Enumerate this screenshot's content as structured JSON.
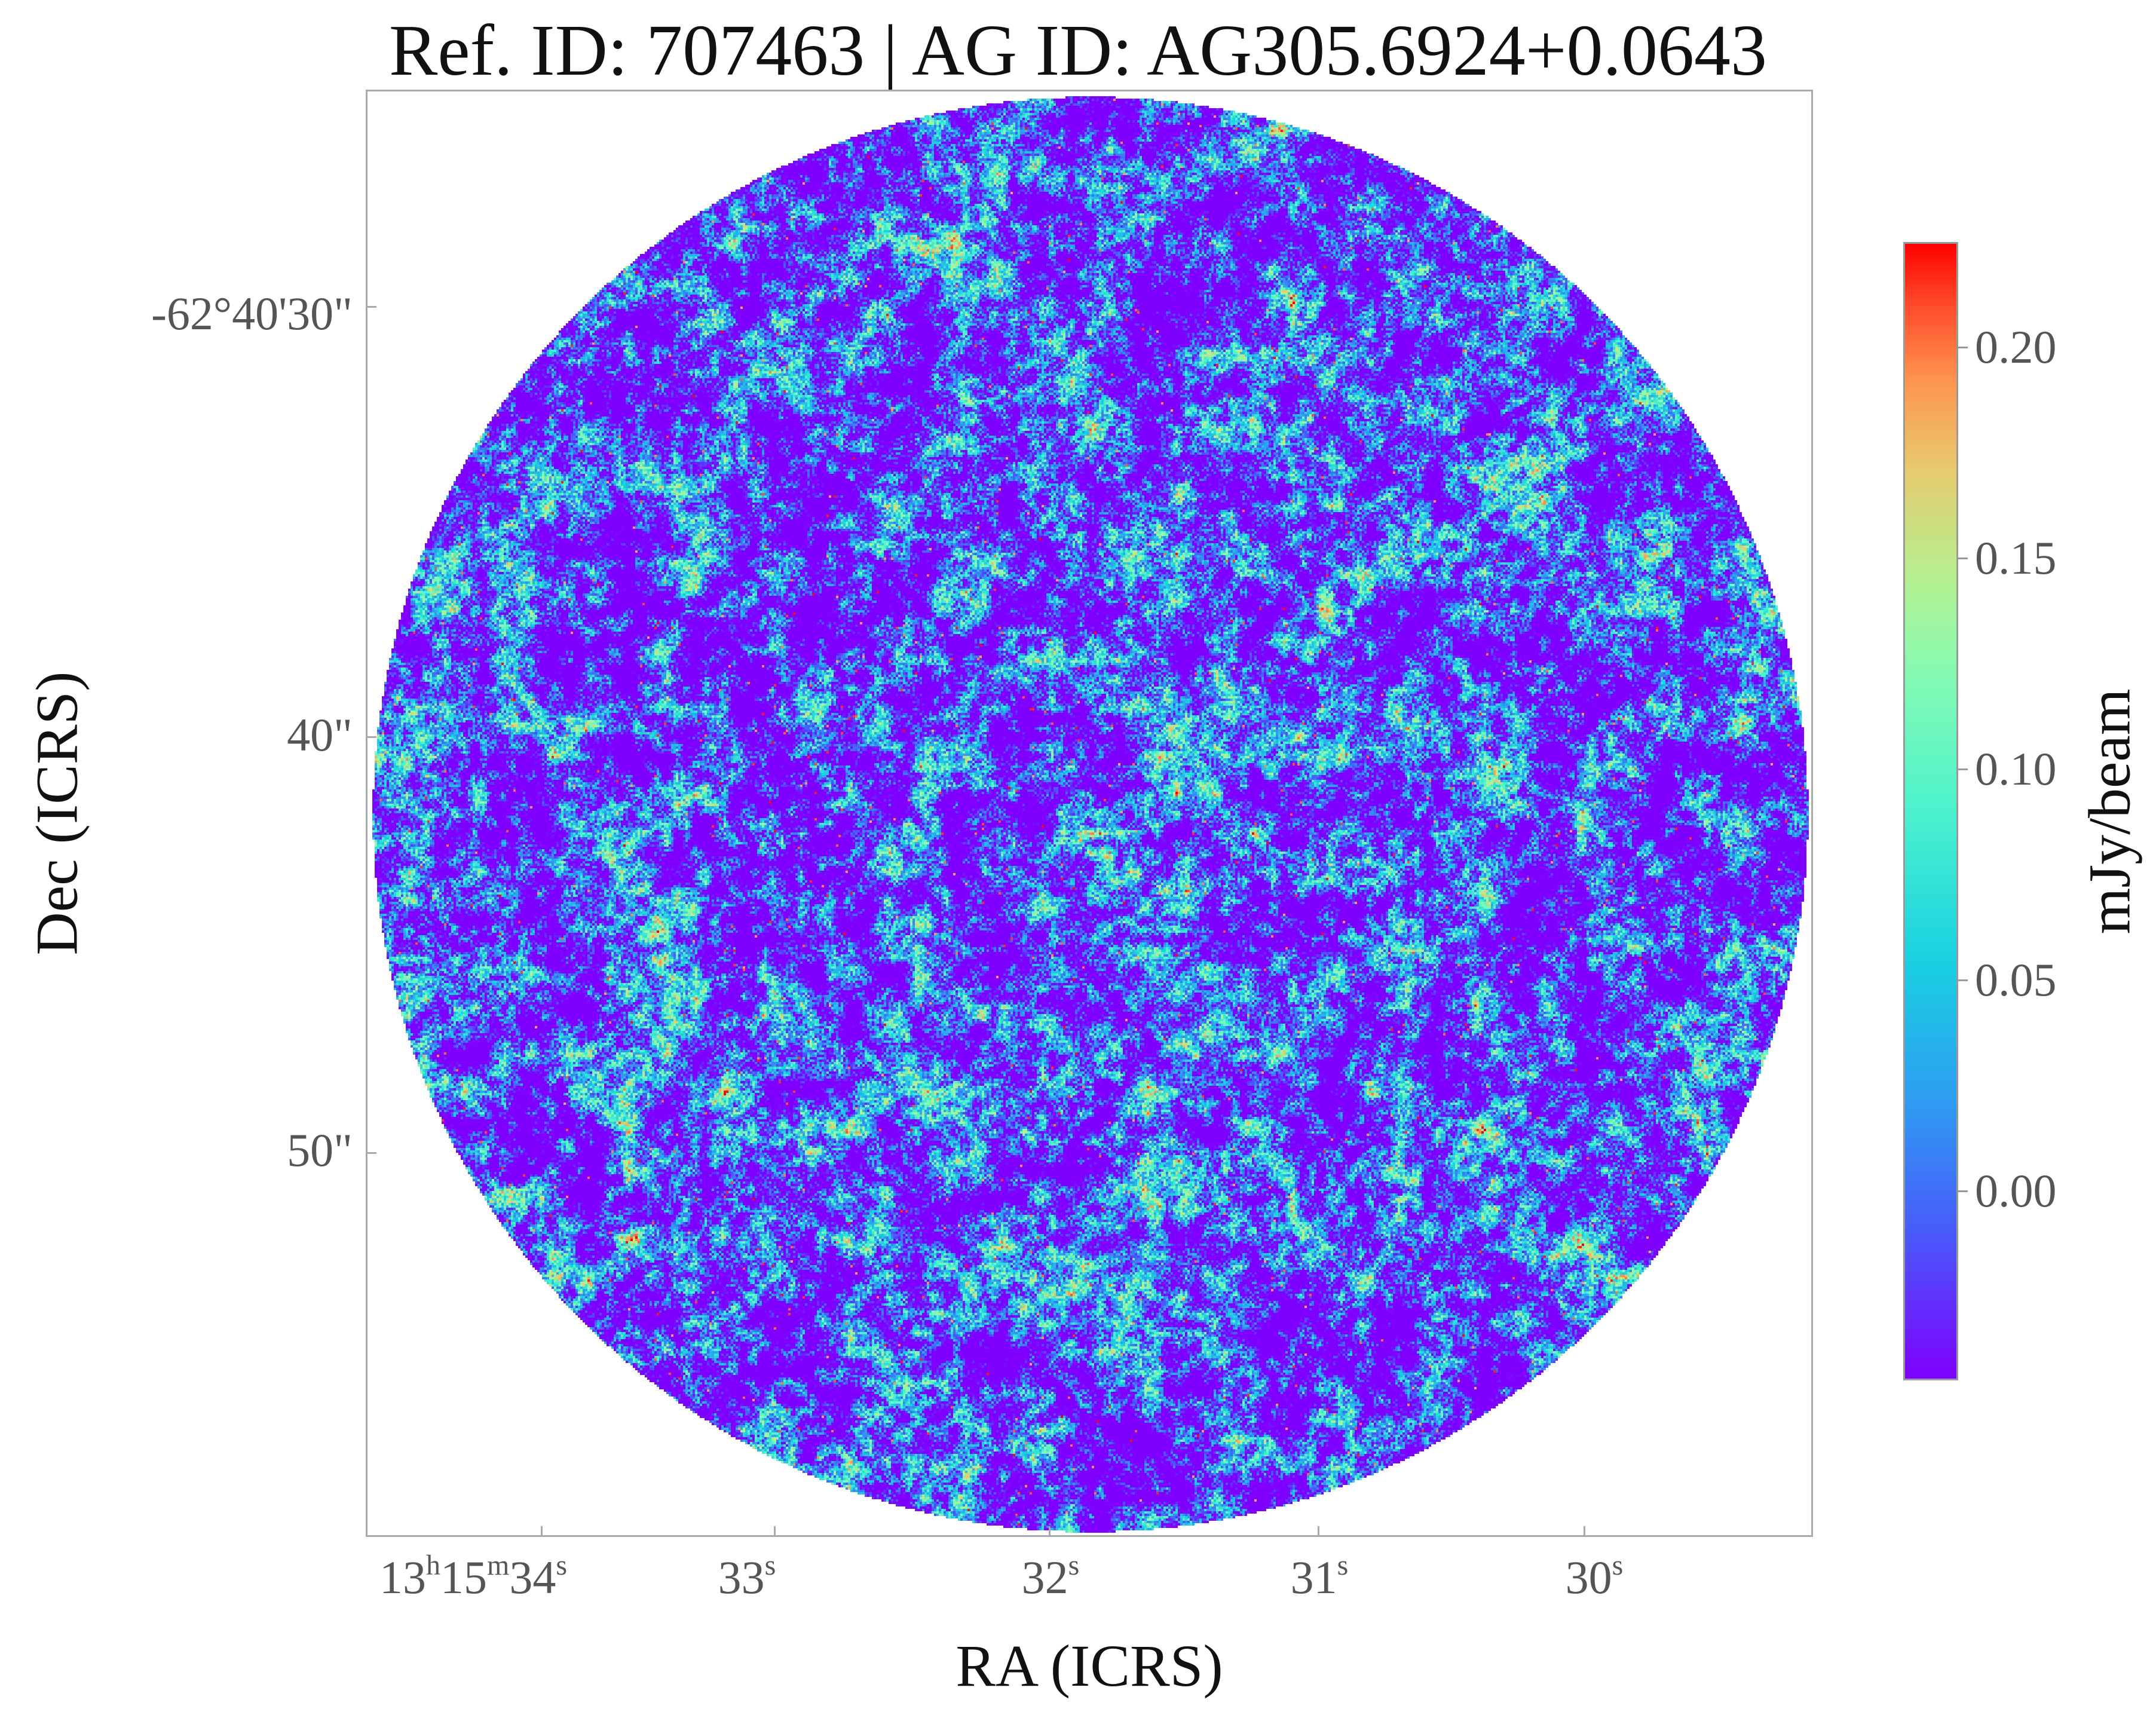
{
  "chart_data": {
    "type": "heatmap",
    "title": "Ref. ID: 707463 | AG ID: AG305.6924+0.0643",
    "xlabel": "RA (ICRS)",
    "ylabel": "Dec (ICRS)",
    "x_ticks": [
      {
        "h": "13",
        "hu": "h",
        "m": "15",
        "mu": "m",
        "s": "34",
        "su": "s"
      },
      {
        "s": "33",
        "su": "s"
      },
      {
        "s": "32",
        "su": "s"
      },
      {
        "s": "31",
        "su": "s"
      },
      {
        "s": "30",
        "su": "s"
      }
    ],
    "y_ticks": [
      "-62°40'30\"",
      "40\"",
      "50\""
    ],
    "colorbar": {
      "label": "mJy/beam",
      "colormap": "rainbow",
      "range": [
        -0.045,
        0.225
      ],
      "ticks": [
        0.2,
        0.15,
        0.1,
        0.05,
        0.0
      ],
      "tick_labels": [
        "0.20",
        "0.15",
        "0.10",
        "0.05",
        "0.00"
      ]
    },
    "grid": false,
    "map": {
      "shape": "circular",
      "description_of_content": "noise-dominated continuum map",
      "bright_spots_mjy": 0.22
    }
  },
  "colors": {
    "frame": "#aaaaaa",
    "cmap_low": "#7f00ff",
    "cmap_high": "#ff0000"
  }
}
